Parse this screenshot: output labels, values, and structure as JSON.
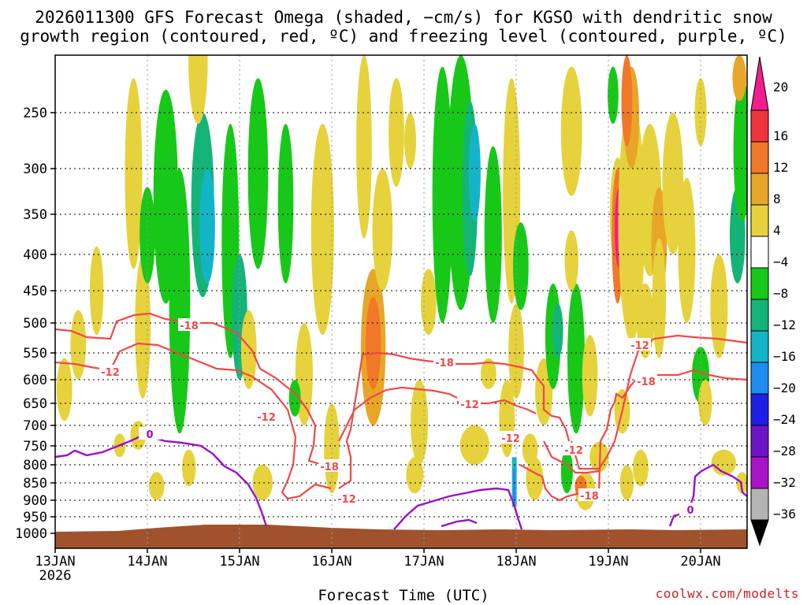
{
  "title": {
    "line1": "2026011300 GFS Forecast Omega (shaded, −cm/s) for KGSO with dendritic snow",
    "line2": "growth region (contoured, red, ºC) and freezing level (contoured, purple, ºC)"
  },
  "credit": "coolwx.com/modelts",
  "chart_data": {
    "type": "heatmap",
    "xlabel": "Forecast Time (UTC)",
    "x_ticks": [
      "13JAN",
      "14JAN",
      "15JAN",
      "16JAN",
      "17JAN",
      "18JAN",
      "19JAN",
      "20JAN"
    ],
    "x_start_year": "2026",
    "x_range_days": [
      0,
      7.5
    ],
    "y_ticks": [
      250,
      300,
      350,
      400,
      450,
      500,
      550,
      600,
      650,
      700,
      750,
      800,
      850,
      900,
      950,
      1000
    ],
    "y_range": [
      200,
      1000
    ],
    "grid": true,
    "colorbar": {
      "levels": [
        "20",
        "16",
        "12",
        "8",
        "4",
        "−4",
        "−8",
        "−12",
        "−16",
        "−20",
        "−24",
        "−28",
        "−32",
        "−36"
      ],
      "colors": [
        "#f01e8c",
        "#f0343c",
        "#f07828",
        "#e8a628",
        "#e6d23c",
        "#ffffff",
        "#18c818",
        "#14b478",
        "#14b4c8",
        "#1e8cf0",
        "#1e1ee6",
        "#6e14c8",
        "#aa14c8",
        "#b4b4b4"
      ]
    },
    "contour_labels": {
      "red": [
        "-18",
        "-12",
        "-12",
        "-18",
        "-12",
        "-18",
        "-12",
        "-12",
        "-18",
        "-12",
        "-18",
        "-12"
      ],
      "purple": [
        "0",
        "0"
      ]
    },
    "colors": {
      "dgz_contour": "#f04848",
      "freezing_contour": "#9a10c8",
      "ground": "#a0522d"
    }
  }
}
